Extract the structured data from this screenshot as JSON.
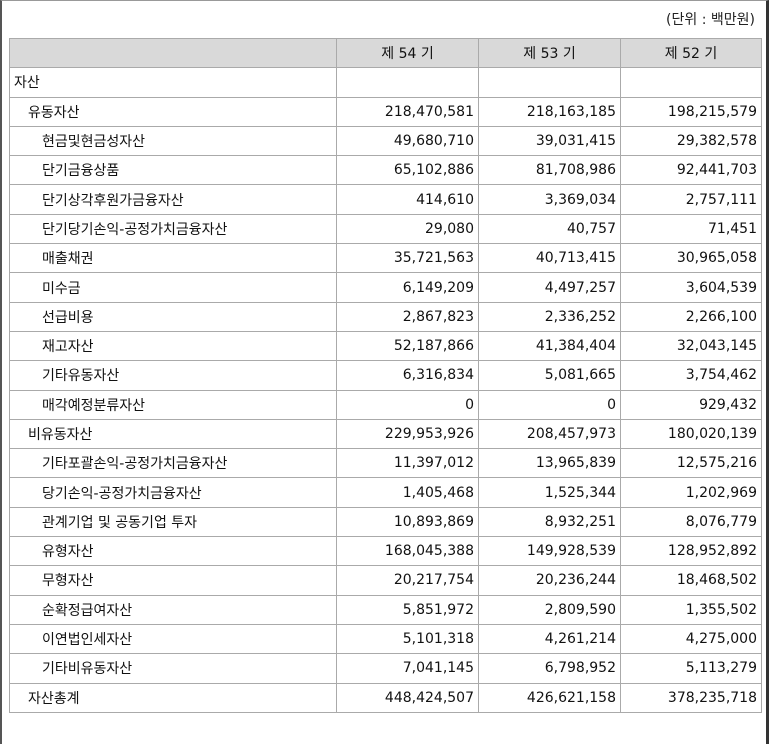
{
  "unit_label": "(단위 : 백만원)",
  "headers": [
    "",
    "제 54 기",
    "제 53 기",
    "제 52 기"
  ],
  "rows": [
    {
      "level": 0,
      "label": "자산",
      "values": [
        "",
        "",
        ""
      ]
    },
    {
      "level": 1,
      "label": "유동자산",
      "values": [
        "218,470,581",
        "218,163,185",
        "198,215,579"
      ]
    },
    {
      "level": 2,
      "label": "현금및현금성자산",
      "values": [
        "49,680,710",
        "39,031,415",
        "29,382,578"
      ]
    },
    {
      "level": 2,
      "label": "단기금융상품",
      "values": [
        "65,102,886",
        "81,708,986",
        "92,441,703"
      ]
    },
    {
      "level": 2,
      "label": "단기상각후원가금융자산",
      "values": [
        "414,610",
        "3,369,034",
        "2,757,111"
      ]
    },
    {
      "level": 2,
      "label": "단기당기손익-공정가치금융자산",
      "values": [
        "29,080",
        "40,757",
        "71,451"
      ]
    },
    {
      "level": 2,
      "label": "매출채권",
      "values": [
        "35,721,563",
        "40,713,415",
        "30,965,058"
      ]
    },
    {
      "level": 2,
      "label": "미수금",
      "values": [
        "6,149,209",
        "4,497,257",
        "3,604,539"
      ]
    },
    {
      "level": 2,
      "label": "선급비용",
      "values": [
        "2,867,823",
        "2,336,252",
        "2,266,100"
      ]
    },
    {
      "level": 2,
      "label": "재고자산",
      "values": [
        "52,187,866",
        "41,384,404",
        "32,043,145"
      ]
    },
    {
      "level": 2,
      "label": "기타유동자산",
      "values": [
        "6,316,834",
        "5,081,665",
        "3,754,462"
      ]
    },
    {
      "level": 2,
      "label": "매각예정분류자산",
      "values": [
        "0",
        "0",
        "929,432"
      ]
    },
    {
      "level": 1,
      "label": "비유동자산",
      "values": [
        "229,953,926",
        "208,457,973",
        "180,020,139"
      ]
    },
    {
      "level": 2,
      "label": "기타포괄손익-공정가치금융자산",
      "values": [
        "11,397,012",
        "13,965,839",
        "12,575,216"
      ]
    },
    {
      "level": 2,
      "label": "당기손익-공정가치금융자산",
      "values": [
        "1,405,468",
        "1,525,344",
        "1,202,969"
      ]
    },
    {
      "level": 2,
      "label": "관계기업 및 공동기업 투자",
      "values": [
        "10,893,869",
        "8,932,251",
        "8,076,779"
      ]
    },
    {
      "level": 2,
      "label": "유형자산",
      "values": [
        "168,045,388",
        "149,928,539",
        "128,952,892"
      ]
    },
    {
      "level": 2,
      "label": "무형자산",
      "values": [
        "20,217,754",
        "20,236,244",
        "18,468,502"
      ]
    },
    {
      "level": 2,
      "label": "순확정급여자산",
      "values": [
        "5,851,972",
        "2,809,590",
        "1,355,502"
      ]
    },
    {
      "level": 2,
      "label": "이연법인세자산",
      "values": [
        "5,101,318",
        "4,261,214",
        "4,275,000"
      ]
    },
    {
      "level": 2,
      "label": "기타비유동자산",
      "values": [
        "7,041,145",
        "6,798,952",
        "5,113,279"
      ]
    },
    {
      "level": 1,
      "label": "자산총계",
      "values": [
        "448,424,507",
        "426,621,158",
        "378,235,718"
      ]
    }
  ]
}
